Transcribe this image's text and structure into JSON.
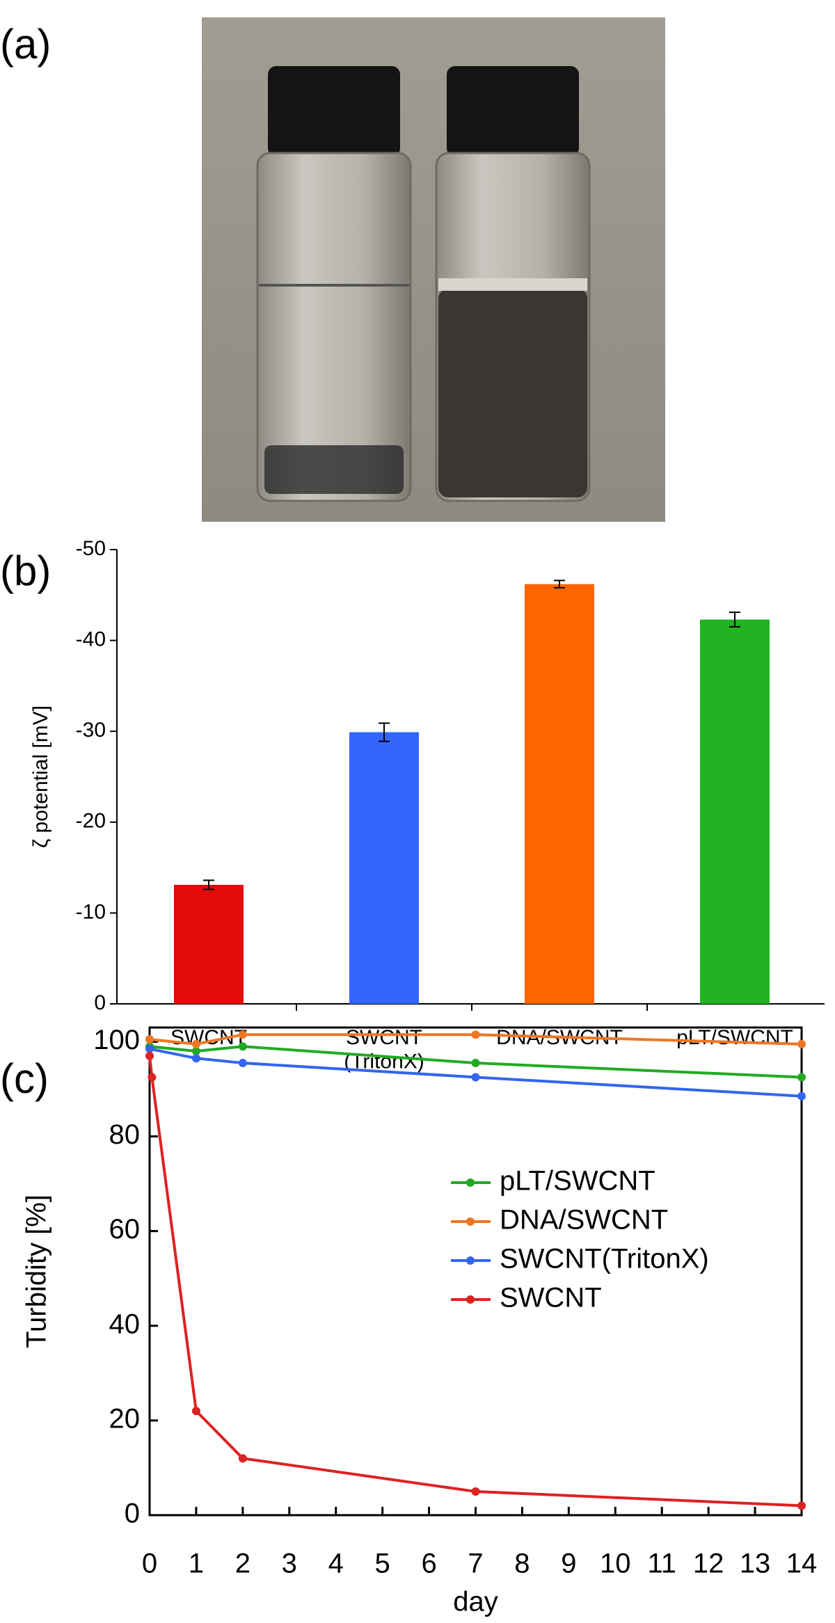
{
  "photo_label": "(a)",
  "chart_data": [
    {
      "type": "bar",
      "panel_label": "(b)",
      "ylabel": "ζ potential [mV]",
      "categories": [
        "SWCNT",
        "SWCNT\n(TritonX)",
        "DNA/SWCNT",
        "pLT/SWCNT"
      ],
      "values": [
        -13.1,
        -29.9,
        -46.2,
        -42.3
      ],
      "errors": [
        0.5,
        1.0,
        0.4,
        0.8
      ],
      "colors": [
        "#e20a0a",
        "#3366ff",
        "#ff6600",
        "#22b322"
      ],
      "ylim": [
        0,
        -50
      ],
      "yticks": [
        0,
        -10,
        -20,
        -30,
        -40,
        -50
      ]
    },
    {
      "type": "line",
      "panel_label": "(c)",
      "xlabel": "day",
      "ylabel": "Turbidity [%]",
      "legend": "center right",
      "series": [
        {
          "name": "pLT/SWCNT",
          "color": "#22aa22",
          "x": [
            0,
            1,
            2,
            7,
            14
          ],
          "values": [
            99,
            98,
            99,
            95.5,
            92.5
          ]
        },
        {
          "name": "DNA/SWCNT",
          "color": "#ee7722",
          "x": [
            0,
            1,
            2,
            7,
            14
          ],
          "values": [
            100.5,
            99.5,
            101.5,
            101.5,
            99.5
          ]
        },
        {
          "name": "SWCNT(TritonX)",
          "color": "#3366ee",
          "x": [
            0,
            1,
            2,
            7,
            14
          ],
          "values": [
            98.5,
            96.5,
            95.5,
            92.5,
            88.5
          ]
        },
        {
          "name": "SWCNT",
          "color": "#dd2222",
          "x": [
            0,
            0.05,
            1,
            2,
            7,
            14
          ],
          "values": [
            97,
            92.5,
            22,
            12,
            5,
            2
          ]
        }
      ],
      "xlim": [
        0,
        14
      ],
      "xticks": [
        0,
        1,
        2,
        3,
        4,
        5,
        6,
        7,
        8,
        9,
        10,
        11,
        12,
        13,
        14
      ],
      "ylim": [
        0,
        103
      ],
      "yticks": [
        0,
        20,
        40,
        60,
        80,
        100
      ]
    }
  ]
}
